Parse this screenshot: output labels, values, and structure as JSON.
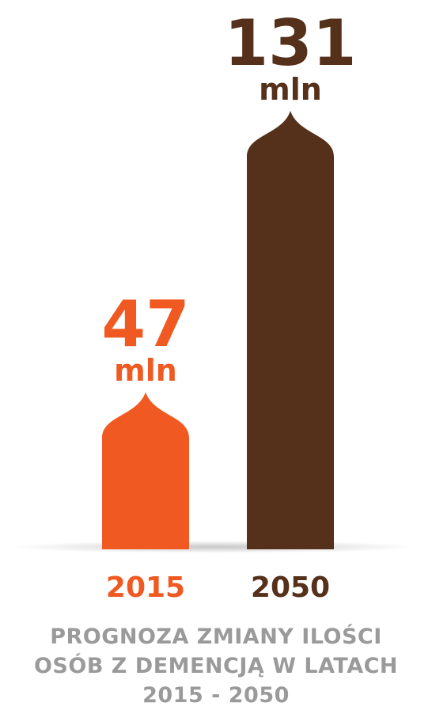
{
  "chart_data": {
    "type": "bar",
    "categories": [
      "2015",
      "2050"
    ],
    "values": [
      47,
      131
    ],
    "unit": "mln",
    "ylim": [
      0,
      131
    ],
    "grid": false,
    "legend": "none",
    "colors": [
      "#f05a22",
      "#55301a"
    ],
    "title_lines": [
      "PROGNOZA ZMIANY ILOŚCI",
      "OSÓB Z DEMENCJĄ W LATACH",
      "2015 - 2050"
    ]
  }
}
